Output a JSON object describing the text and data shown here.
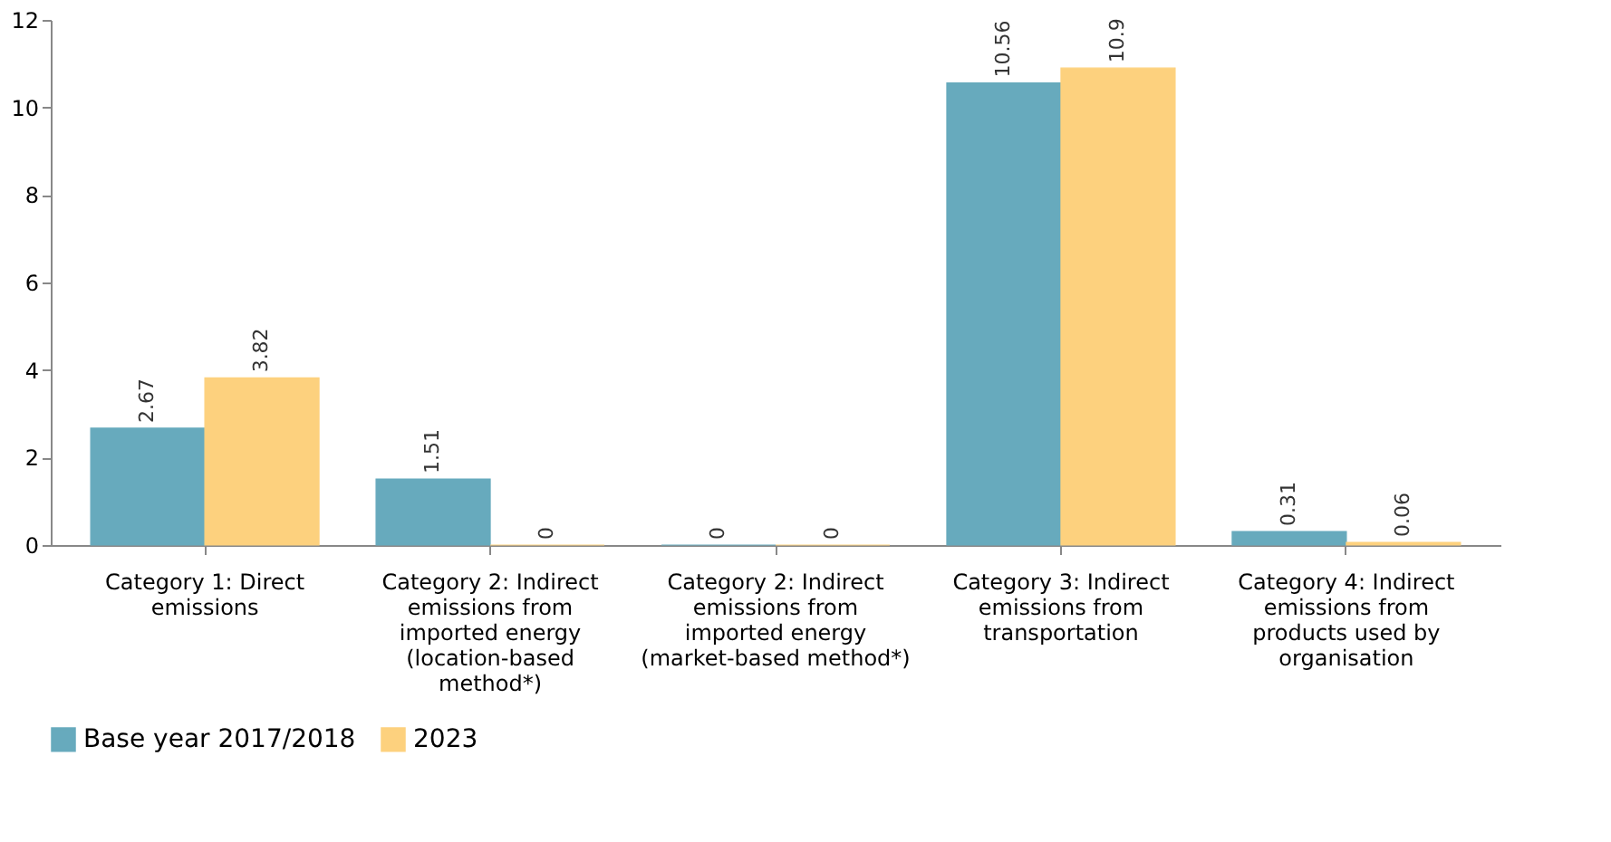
{
  "chart_data": {
    "type": "bar",
    "categories": [
      "Category 1: Direct emissions",
      "Category 2: Indirect emissions from imported energy (location-based method*)",
      "Category 2: Indirect emissions from imported energy (market-based method*)",
      "Category 3: Indirect emissions from transportation",
      "Category 4: Indirect emissions from products used by organisation"
    ],
    "series": [
      {
        "name": "Base year 2017/2018",
        "color": "#67aabd",
        "values": [
          2.67,
          1.51,
          0,
          10.56,
          0.31
        ]
      },
      {
        "name": "2023",
        "color": "#fdd17e",
        "values": [
          3.82,
          0,
          0,
          10.9,
          0.06
        ]
      }
    ],
    "ylim": [
      0,
      12
    ],
    "yticks": [
      0,
      2,
      4,
      6,
      8,
      10,
      12
    ],
    "grid": false,
    "legend": "bottom",
    "data_labels": true
  }
}
